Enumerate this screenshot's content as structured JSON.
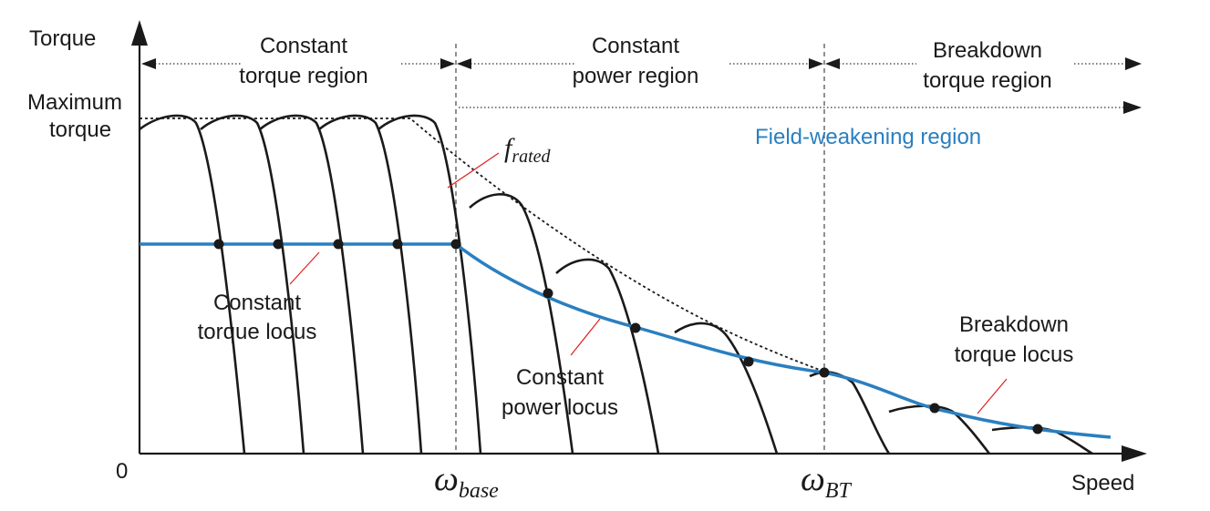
{
  "axes": {
    "y_label": "Torque",
    "x_label": "Speed",
    "origin_label": "0",
    "max_torque_line1": "Maximum",
    "max_torque_line2": "torque"
  },
  "regions": {
    "constant_torque": {
      "line1": "Constant",
      "line2": "torque region"
    },
    "constant_power": {
      "line1": "Constant",
      "line2": "power region"
    },
    "breakdown_torque": {
      "line1": "Breakdown",
      "line2": "torque region"
    },
    "field_weakening": "Field-weakening region"
  },
  "speed_marks": {
    "base": {
      "symbol": "ω",
      "subscript": "base"
    },
    "bt": {
      "symbol": "ω",
      "subscript": "BT"
    }
  },
  "f_rated": {
    "symbol": "f",
    "subscript": "rated"
  },
  "loci": {
    "constant_torque": {
      "line1": "Constant",
      "line2": "torque locus"
    },
    "constant_power": {
      "line1": "Constant",
      "line2": "power locus"
    },
    "breakdown_torque": {
      "line1": "Breakdown",
      "line2": "torque locus"
    }
  },
  "colors": {
    "locus": "#2a7fc0",
    "pointer": "#e02020",
    "curve": "#1a1a1a"
  }
}
